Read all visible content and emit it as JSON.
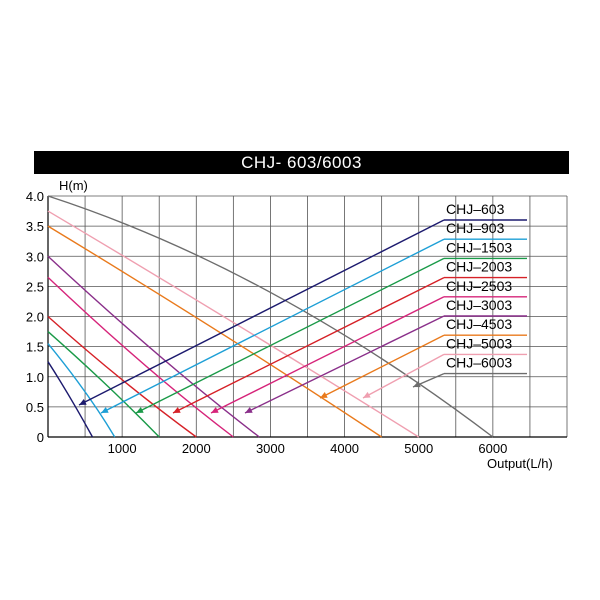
{
  "chart_data": {
    "type": "line",
    "title": "CHJ- 603/6003",
    "xlabel": "Output(L/h)",
    "ylabel": "H(m)",
    "xlim": [
      0,
      7000
    ],
    "ylim": [
      0,
      4.0
    ],
    "x_ticks": [
      "1000",
      "2000",
      "3000",
      "4000",
      "5000",
      "6000"
    ],
    "y_ticks": [
      "0",
      "0.5",
      "1.0",
      "1.5",
      "2.0",
      "2.5",
      "3.0",
      "3.5",
      "4.0"
    ],
    "x_tick_values": [
      1000,
      2000,
      3000,
      4000,
      5000,
      6000
    ],
    "y_tick_values": [
      0,
      0.5,
      1.0,
      1.5,
      2.0,
      2.5,
      3.0,
      3.5,
      4.0
    ],
    "grid": true,
    "legend_position": "top-right",
    "series": [
      {
        "name": "CHJ–603",
        "color": "#1c1a6e",
        "x": [
          0,
          300,
          600
        ],
        "y": [
          1.25,
          0.65,
          0
        ]
      },
      {
        "name": "CHJ–903",
        "color": "#1d9fd6",
        "x": [
          0,
          500,
          900
        ],
        "y": [
          1.55,
          0.75,
          0
        ]
      },
      {
        "name": "CHJ–1503",
        "color": "#1a9a48",
        "x": [
          0,
          800,
          1500
        ],
        "y": [
          1.75,
          0.85,
          0
        ]
      },
      {
        "name": "CHJ–2003",
        "color": "#d62127",
        "x": [
          0,
          1000,
          2000
        ],
        "y": [
          2.0,
          0.95,
          0
        ]
      },
      {
        "name": "CHJ–2503",
        "color": "#d6247a",
        "x": [
          0,
          1300,
          2500
        ],
        "y": [
          2.65,
          1.2,
          0
        ]
      },
      {
        "name": "CHJ–3003",
        "color": "#8a2f8a",
        "x": [
          0,
          1500,
          2850
        ],
        "y": [
          3.0,
          1.35,
          0
        ]
      },
      {
        "name": "CHJ–4503",
        "color": "#e97a1c",
        "x": [
          0,
          2300,
          4500
        ],
        "y": [
          3.5,
          1.75,
          0
        ]
      },
      {
        "name": "CHJ–5003",
        "color": "#ef9fb0",
        "x": [
          0,
          2500,
          5000
        ],
        "y": [
          3.75,
          1.9,
          0
        ]
      },
      {
        "name": "CHJ–6003",
        "color": "#6d6d6d",
        "x": [
          0,
          3000,
          6000
        ],
        "y": [
          4.0,
          2.4,
          0
        ]
      }
    ]
  }
}
